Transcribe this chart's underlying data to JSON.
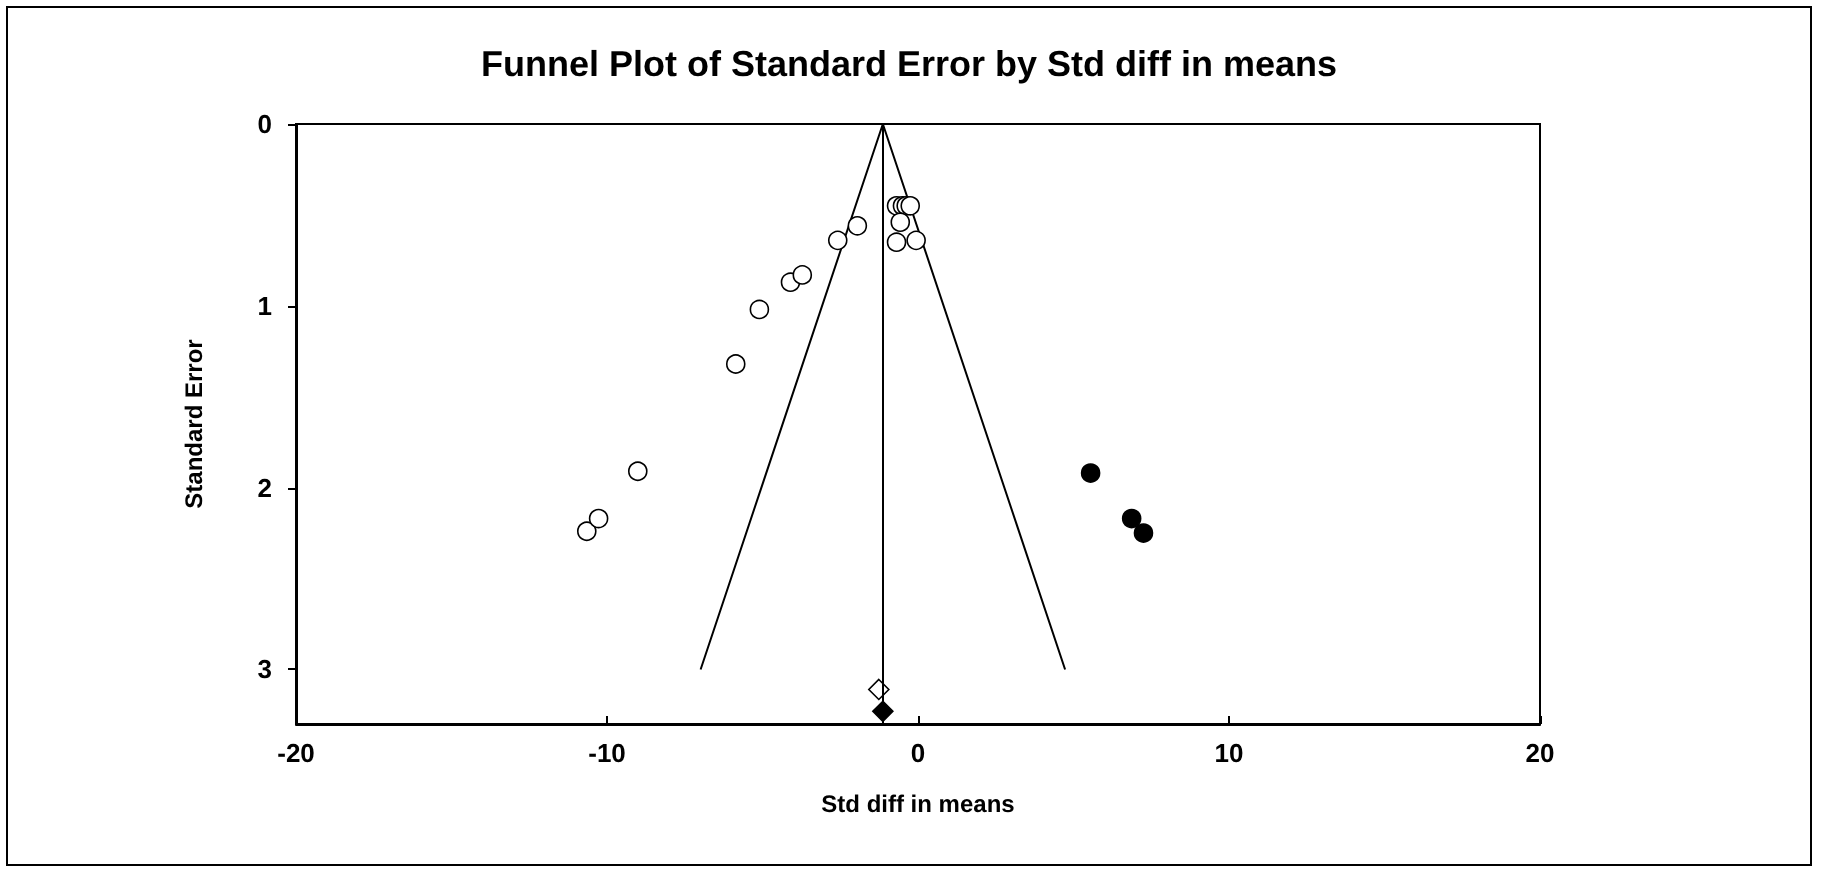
{
  "chart_data": {
    "type": "scatter",
    "title": "Funnel Plot of Standard Error by Std diff in means",
    "xlabel": "Std diff in means",
    "ylabel": "Standard Error",
    "xlim": [
      -20,
      20
    ],
    "xticks": [
      -20,
      -10,
      0,
      10,
      20
    ],
    "ylim": [
      3.3,
      0
    ],
    "yticks": [
      0,
      1,
      2,
      3
    ],
    "grid": false,
    "ref_lines": [
      {
        "axis": "x",
        "value": -1.13,
        "color": "#000000"
      }
    ],
    "series": [
      {
        "type": "line",
        "color": "#000000",
        "marker": "none",
        "x": [
          -6.99,
          -1.13,
          4.73
        ],
        "values": [
          3,
          0,
          3
        ]
      },
      {
        "color": "#ffffff",
        "marker": "circle",
        "x": [
          -10.65,
          -10.27,
          -9.01,
          -5.86,
          -5.1,
          -4.1,
          -3.72,
          -2.58,
          -1.95,
          -0.69,
          -0.5,
          -0.38,
          -0.25,
          -0.57,
          -0.69,
          -0.06
        ],
        "values": [
          2.24,
          2.17,
          1.91,
          1.32,
          1.02,
          0.87,
          0.83,
          0.64,
          0.56,
          0.45,
          0.45,
          0.45,
          0.45,
          0.54,
          0.65,
          0.64
        ]
      },
      {
        "color": "#000000",
        "marker": "circle",
        "x": [
          5.55,
          6.87,
          7.25
        ],
        "values": [
          1.92,
          2.17,
          2.25
        ]
      },
      {
        "color": "#ffffff",
        "marker": "diamond",
        "x": [
          -1.26
        ],
        "values": [
          3.11
        ]
      },
      {
        "color": "#000000",
        "marker": "diamond",
        "x": [
          -1.13
        ],
        "values": [
          3.23
        ]
      }
    ]
  }
}
